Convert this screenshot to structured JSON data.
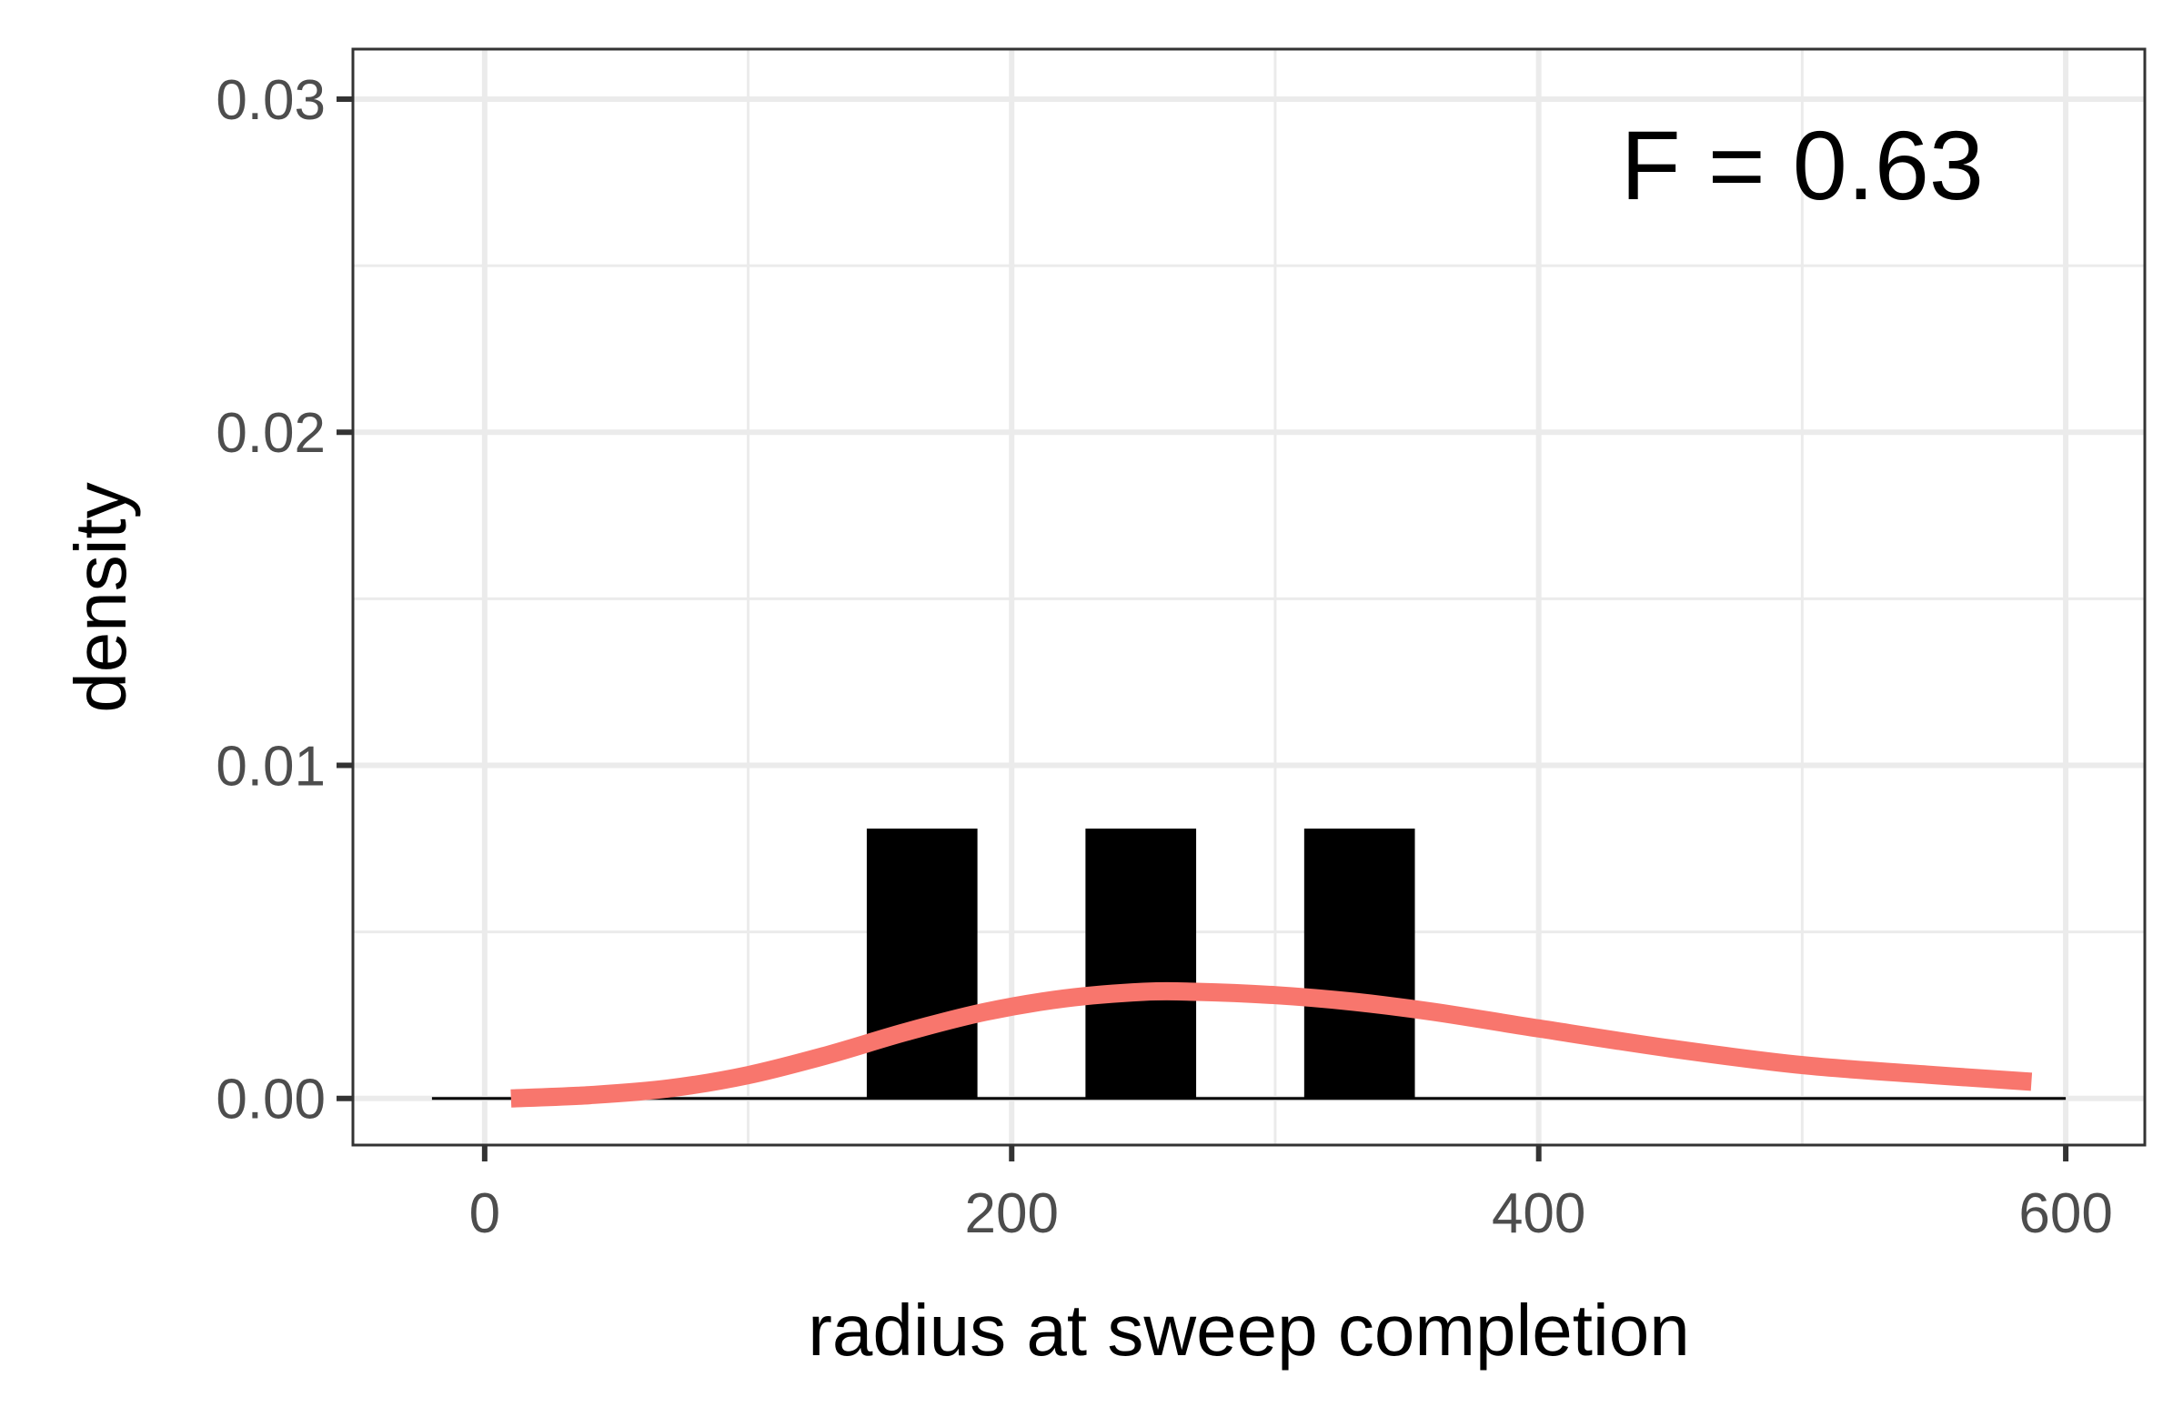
{
  "chart_data": {
    "type": "histogram",
    "xlabel": "radius at sweep completion",
    "ylabel": "density",
    "xlim": [
      -50,
      630
    ],
    "ylim": [
      -0.0014,
      0.0315
    ],
    "x_ticks": [
      0,
      200,
      400,
      600
    ],
    "x_tick_labels": [
      "0",
      "200",
      "400",
      "600"
    ],
    "y_ticks": [
      0.0,
      0.01,
      0.02,
      0.03
    ],
    "y_tick_labels": [
      "0.00",
      "0.01",
      "0.02",
      "0.03"
    ],
    "x_minor_ticks": [
      100,
      300,
      500
    ],
    "y_minor_ticks": [
      0.005,
      0.015,
      0.025
    ],
    "grid": true,
    "baseline": {
      "from": -20,
      "to": 600,
      "y": 0
    },
    "bars": [
      {
        "x0": 145,
        "x1": 187,
        "density": 0.0081
      },
      {
        "x0": 228,
        "x1": 270,
        "density": 0.0081
      },
      {
        "x0": 311,
        "x1": 353,
        "density": 0.0081
      }
    ],
    "curve": {
      "color": "#F8766D",
      "points": [
        [
          10,
          0.0
        ],
        [
          40,
          0.0001
        ],
        [
          70,
          0.0003
        ],
        [
          100,
          0.0007
        ],
        [
          130,
          0.0013
        ],
        [
          160,
          0.002
        ],
        [
          190,
          0.0026
        ],
        [
          220,
          0.003
        ],
        [
          250,
          0.0032
        ],
        [
          270,
          0.0032
        ],
        [
          300,
          0.0031
        ],
        [
          330,
          0.0029
        ],
        [
          360,
          0.0026
        ],
        [
          400,
          0.0021
        ],
        [
          450,
          0.0015
        ],
        [
          500,
          0.001
        ],
        [
          550,
          0.0007
        ],
        [
          587,
          0.0005
        ]
      ]
    },
    "annotations": [
      {
        "text": "F = 0.63",
        "x": 500,
        "y": 0.027
      }
    ],
    "colors": {
      "bars": "#000000",
      "curve": "#F8766D",
      "grid": "#ebebeb",
      "panel_border": "#333333"
    }
  }
}
